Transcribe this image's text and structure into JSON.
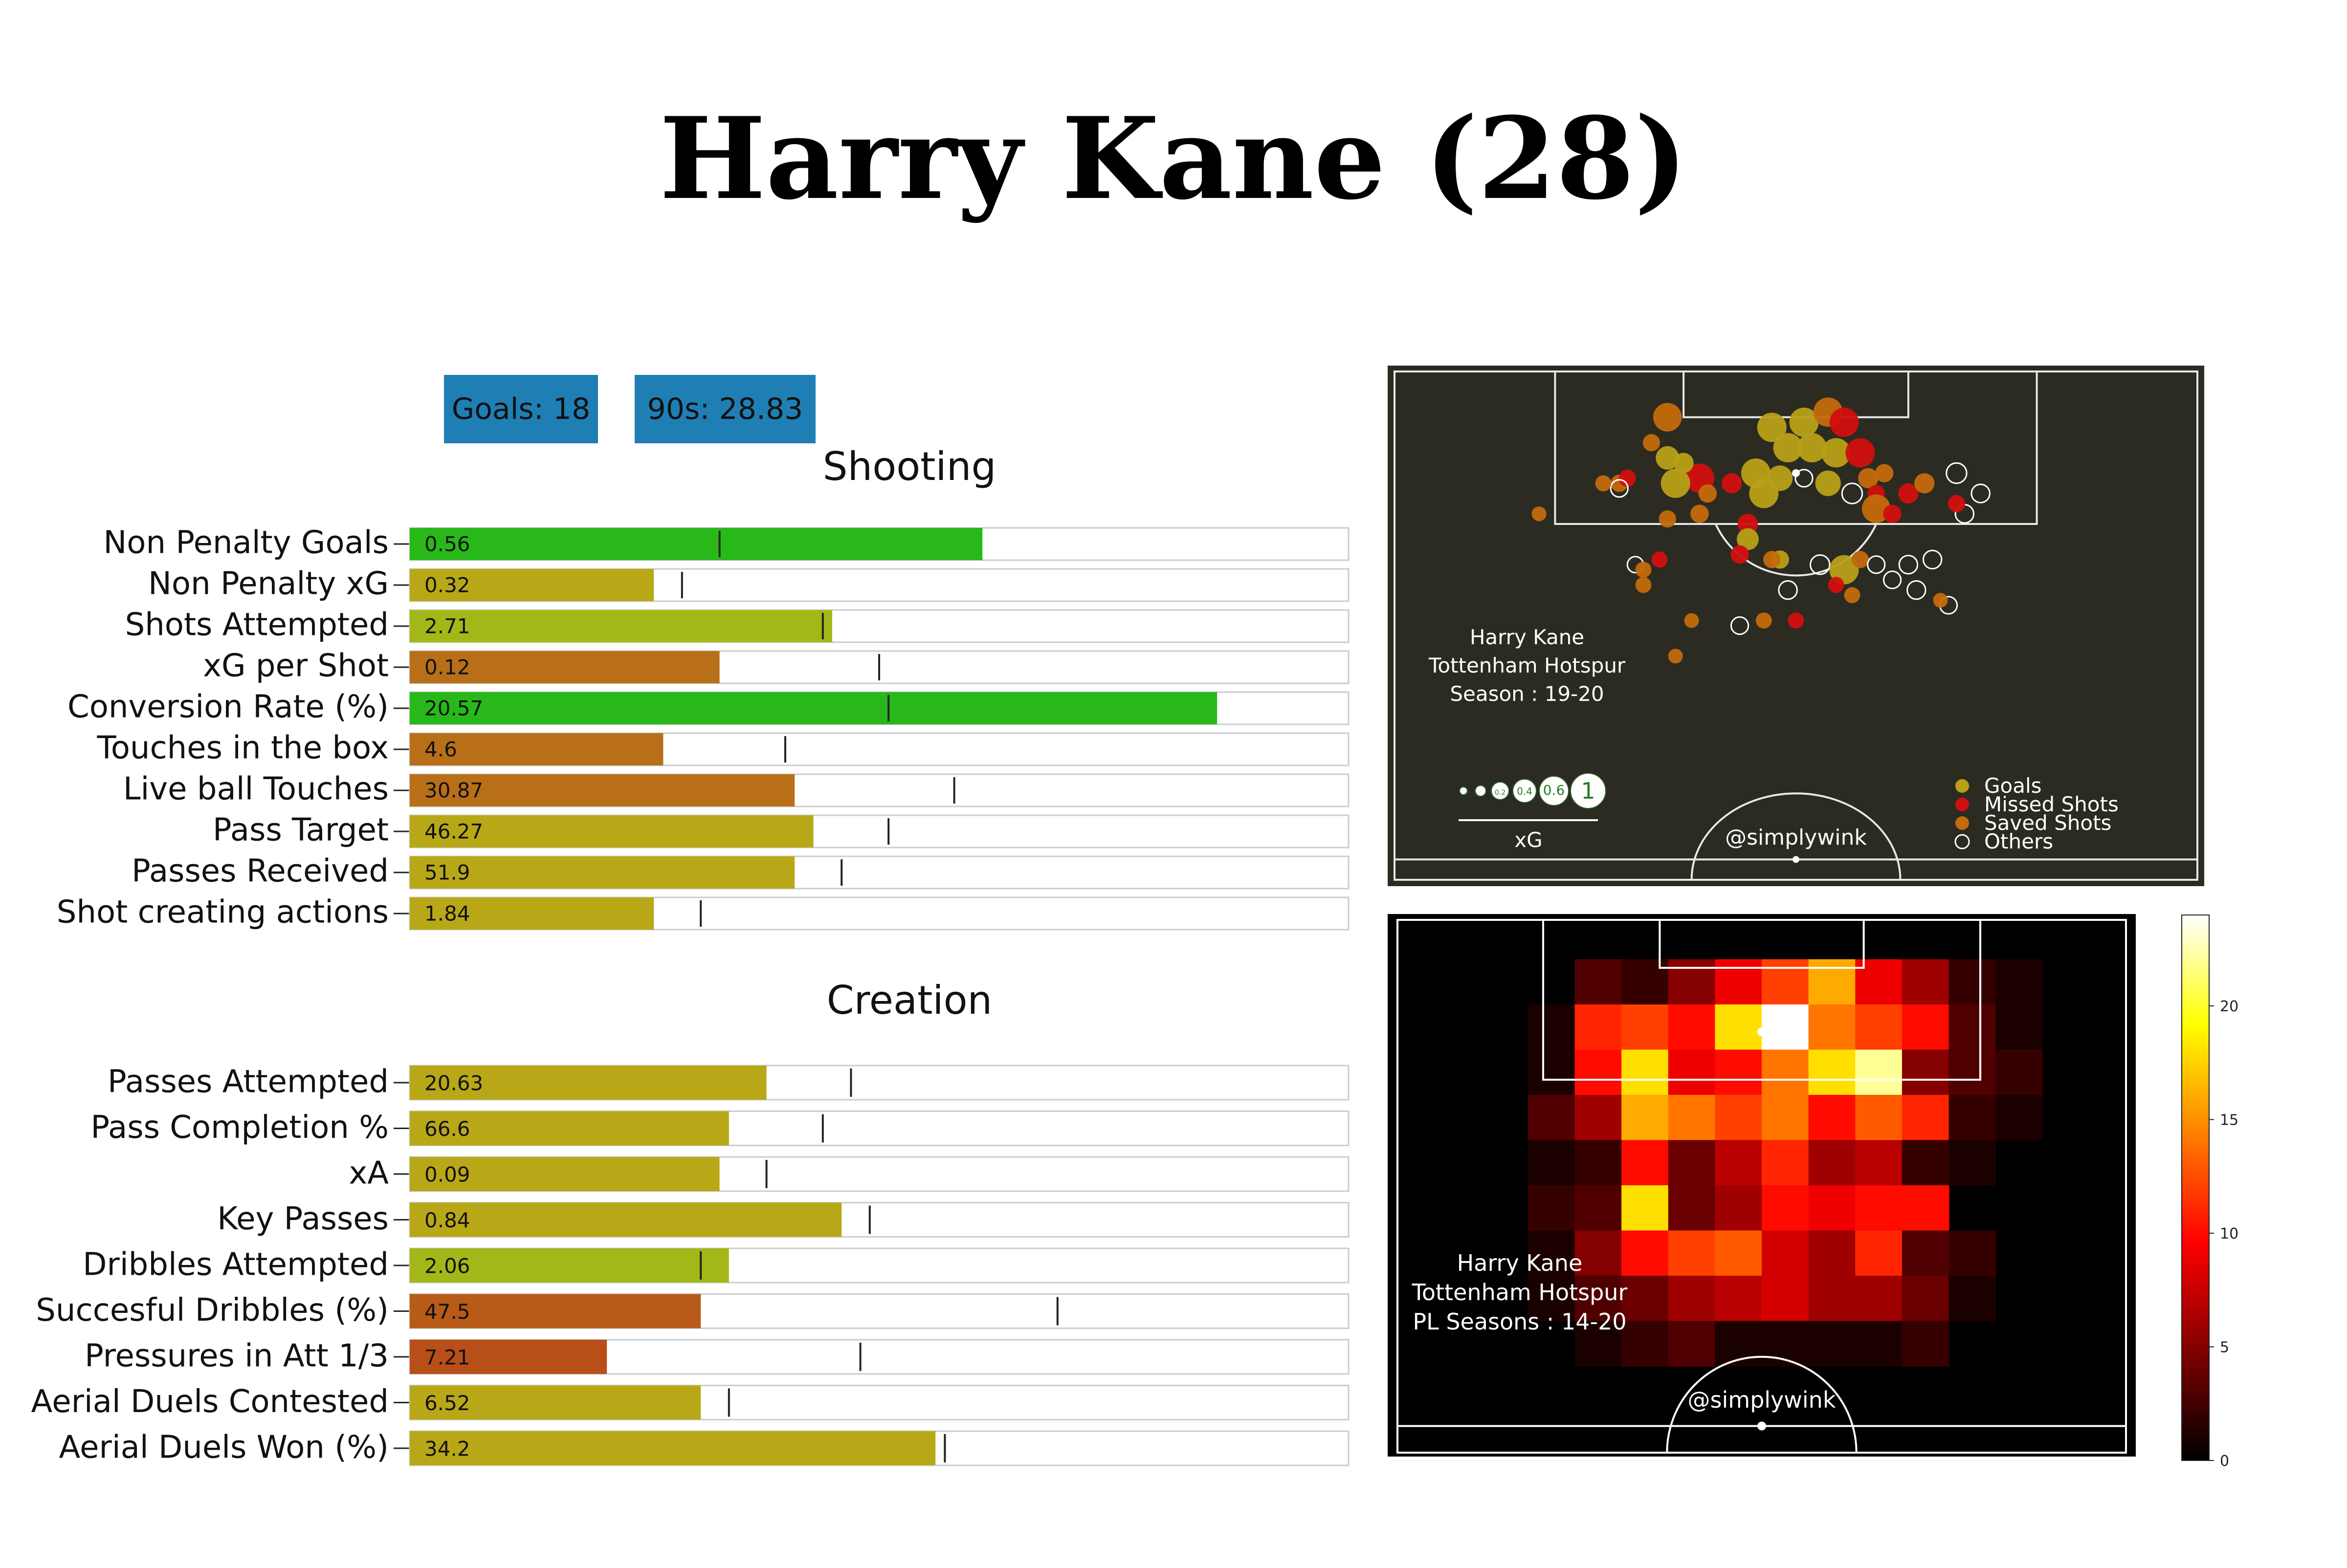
{
  "title": "Harry Kane (28)",
  "badges": {
    "goals": "Goals: 18",
    "nineties": "90s: 28.83"
  },
  "sections": {
    "shooting": "Shooting",
    "creation": "Creation"
  },
  "chart_data": [
    {
      "type": "bar",
      "title": "Shooting",
      "orientation": "horizontal",
      "scale_max": 1.0,
      "rows": [
        {
          "label": "Non Penalty Goals",
          "value_text": "0.56",
          "bar_fraction": 0.61,
          "marker_fraction": 0.33,
          "color": "#28b81a"
        },
        {
          "label": "Non Penalty xG",
          "value_text": "0.32",
          "bar_fraction": 0.26,
          "marker_fraction": 0.29,
          "color": "#b8a818"
        },
        {
          "label": "Shots Attempted",
          "value_text": "2.71",
          "bar_fraction": 0.45,
          "marker_fraction": 0.44,
          "color": "#a3b818"
        },
        {
          "label": "xG per Shot",
          "value_text": "0.12",
          "bar_fraction": 0.33,
          "marker_fraction": 0.5,
          "color": "#b86f18"
        },
        {
          "label": "Conversion Rate (%)",
          "value_text": "20.57",
          "bar_fraction": 0.86,
          "marker_fraction": 0.51,
          "color": "#28b81a"
        },
        {
          "label": "Touches in the box",
          "value_text": "4.6",
          "bar_fraction": 0.27,
          "marker_fraction": 0.4,
          "color": "#b86f18"
        },
        {
          "label": "Live ball Touches",
          "value_text": "30.87",
          "bar_fraction": 0.41,
          "marker_fraction": 0.58,
          "color": "#b86f18"
        },
        {
          "label": "Pass Target",
          "value_text": "46.27",
          "bar_fraction": 0.43,
          "marker_fraction": 0.51,
          "color": "#b8a818"
        },
        {
          "label": "Passes Received",
          "value_text": "51.9",
          "bar_fraction": 0.41,
          "marker_fraction": 0.46,
          "color": "#b8a818"
        },
        {
          "label": "Shot creating actions",
          "value_text": "1.84",
          "bar_fraction": 0.26,
          "marker_fraction": 0.31,
          "color": "#b8a818"
        }
      ]
    },
    {
      "type": "bar",
      "title": "Creation",
      "orientation": "horizontal",
      "scale_max": 1.0,
      "rows": [
        {
          "label": "Passes Attempted",
          "value_text": "20.63",
          "bar_fraction": 0.38,
          "marker_fraction": 0.47,
          "color": "#b8a818"
        },
        {
          "label": "Pass Completion % ",
          "value_text": "66.6",
          "bar_fraction": 0.34,
          "marker_fraction": 0.44,
          "color": "#b8a818"
        },
        {
          "label": "xA",
          "value_text": "0.09",
          "bar_fraction": 0.33,
          "marker_fraction": 0.38,
          "color": "#b8a818"
        },
        {
          "label": "Key Passes",
          "value_text": "0.84",
          "bar_fraction": 0.46,
          "marker_fraction": 0.49,
          "color": "#b8a818"
        },
        {
          "label": "Dribbles Attempted",
          "value_text": "2.06",
          "bar_fraction": 0.34,
          "marker_fraction": 0.31,
          "color": "#a3b818"
        },
        {
          "label": "Succesful Dribbles (%)",
          "value_text": "47.5",
          "bar_fraction": 0.31,
          "marker_fraction": 0.69,
          "color": "#b85a18"
        },
        {
          "label": "Pressures in Att 1/3",
          "value_text": "7.21",
          "bar_fraction": 0.21,
          "marker_fraction": 0.48,
          "color": "#b84e18"
        },
        {
          "label": "Aerial Duels Contested",
          "value_text": "6.52",
          "bar_fraction": 0.31,
          "marker_fraction": 0.34,
          "color": "#b8a818"
        },
        {
          "label": "Aerial Duels Won (%)",
          "value_text": "34.2",
          "bar_fraction": 0.56,
          "marker_fraction": 0.57,
          "color": "#b8a818"
        }
      ]
    },
    {
      "type": "scatter",
      "background": "#2b2b22",
      "annotation": [
        "Harry Kane",
        "Tottenham Hotspur",
        "Season : 19-20"
      ],
      "credit": "@simplywink",
      "xg_legend": {
        "label": "xG",
        "sizes": [
          "0.2",
          "0.4",
          "0.6",
          "1"
        ]
      },
      "legend": [
        {
          "name": "Goals",
          "color": "#b8a018"
        },
        {
          "name": "Missed Shots",
          "color": "#d10f0f"
        },
        {
          "name": "Saved Shots",
          "color": "#c46a0c"
        },
        {
          "name": "Others",
          "color": "#ffffff"
        }
      ],
      "x_range": [
        0,
        100
      ],
      "y_range": [
        0,
        100
      ],
      "points": [
        {
          "x": 51,
          "y": 10,
          "xg": 0.55,
          "type": "Goals"
        },
        {
          "x": 54,
          "y": 8,
          "xg": 0.45,
          "type": "Saved Shots"
        },
        {
          "x": 56,
          "y": 10,
          "xg": 0.3,
          "type": "Missed Shots"
        },
        {
          "x": 47,
          "y": 11,
          "xg": 0.3,
          "type": "Goals"
        },
        {
          "x": 49,
          "y": 15,
          "xg": 0.32,
          "type": "Goals"
        },
        {
          "x": 52,
          "y": 15,
          "xg": 0.35,
          "type": "Goals"
        },
        {
          "x": 55,
          "y": 16,
          "xg": 0.25,
          "type": "Goals"
        },
        {
          "x": 58,
          "y": 16,
          "xg": 0.28,
          "type": "Missed Shots"
        },
        {
          "x": 45,
          "y": 20,
          "xg": 0.25,
          "type": "Goals"
        },
        {
          "x": 48,
          "y": 21,
          "xg": 0.15,
          "type": "Goals"
        },
        {
          "x": 51,
          "y": 21,
          "xg": 0.05,
          "type": "Others"
        },
        {
          "x": 54,
          "y": 22,
          "xg": 0.15,
          "type": "Goals"
        },
        {
          "x": 46,
          "y": 24,
          "xg": 0.22,
          "type": "Goals"
        },
        {
          "x": 57,
          "y": 24,
          "xg": 0.08,
          "type": "Others"
        },
        {
          "x": 38,
          "y": 21,
          "xg": 0.26,
          "type": "Missed Shots"
        },
        {
          "x": 35,
          "y": 22,
          "xg": 0.22,
          "type": "Goals"
        },
        {
          "x": 34,
          "y": 17,
          "xg": 0.12,
          "type": "Goals"
        },
        {
          "x": 36,
          "y": 18,
          "xg": 0.08,
          "type": "Goals"
        },
        {
          "x": 34,
          "y": 9,
          "xg": 0.2,
          "type": "Saved Shots"
        },
        {
          "x": 32,
          "y": 14,
          "xg": 0.05,
          "type": "Saved Shots"
        },
        {
          "x": 28,
          "y": 22,
          "xg": 0.05,
          "type": "Saved Shots"
        },
        {
          "x": 29,
          "y": 21,
          "xg": 0.05,
          "type": "Missed Shots"
        },
        {
          "x": 28,
          "y": 23,
          "xg": 0.05,
          "type": "Others"
        },
        {
          "x": 26,
          "y": 22,
          "xg": 0.04,
          "type": "Saved Shots"
        },
        {
          "x": 39,
          "y": 24,
          "xg": 0.06,
          "type": "Saved Shots"
        },
        {
          "x": 42,
          "y": 22,
          "xg": 0.08,
          "type": "Missed Shots"
        },
        {
          "x": 38,
          "y": 28,
          "xg": 0.06,
          "type": "Saved Shots"
        },
        {
          "x": 34,
          "y": 29,
          "xg": 0.05,
          "type": "Saved Shots"
        },
        {
          "x": 44,
          "y": 30,
          "xg": 0.08,
          "type": "Missed Shots"
        },
        {
          "x": 44,
          "y": 33,
          "xg": 0.1,
          "type": "Goals"
        },
        {
          "x": 59,
          "y": 21,
          "xg": 0.08,
          "type": "Saved Shots"
        },
        {
          "x": 60,
          "y": 24,
          "xg": 0.05,
          "type": "Missed Shots"
        },
        {
          "x": 61,
          "y": 20,
          "xg": 0.06,
          "type": "Saved Shots"
        },
        {
          "x": 60,
          "y": 27,
          "xg": 0.2,
          "type": "Saved Shots"
        },
        {
          "x": 62,
          "y": 28,
          "xg": 0.06,
          "type": "Missed Shots"
        },
        {
          "x": 64,
          "y": 24,
          "xg": 0.08,
          "type": "Missed Shots"
        },
        {
          "x": 70,
          "y": 20,
          "xg": 0.08,
          "type": "Others"
        },
        {
          "x": 71,
          "y": 28,
          "xg": 0.06,
          "type": "Others"
        },
        {
          "x": 73,
          "y": 24,
          "xg": 0.06,
          "type": "Others"
        },
        {
          "x": 70,
          "y": 26,
          "xg": 0.05,
          "type": "Missed Shots"
        },
        {
          "x": 66,
          "y": 22,
          "xg": 0.08,
          "type": "Saved Shots"
        },
        {
          "x": 48,
          "y": 37,
          "xg": 0.06,
          "type": "Goals"
        },
        {
          "x": 43,
          "y": 36,
          "xg": 0.06,
          "type": "Missed Shots"
        },
        {
          "x": 47,
          "y": 37,
          "xg": 0.05,
          "type": "Saved Shots"
        },
        {
          "x": 30,
          "y": 38,
          "xg": 0.04,
          "type": "Others"
        },
        {
          "x": 33,
          "y": 37,
          "xg": 0.04,
          "type": "Missed Shots"
        },
        {
          "x": 31,
          "y": 39,
          "xg": 0.04,
          "type": "Saved Shots"
        },
        {
          "x": 53,
          "y": 38,
          "xg": 0.07,
          "type": "Others"
        },
        {
          "x": 56,
          "y": 39,
          "xg": 0.28,
          "type": "Goals"
        },
        {
          "x": 58,
          "y": 37,
          "xg": 0.05,
          "type": "Saved Shots"
        },
        {
          "x": 60,
          "y": 38,
          "xg": 0.05,
          "type": "Others"
        },
        {
          "x": 64,
          "y": 38,
          "xg": 0.06,
          "type": "Others"
        },
        {
          "x": 67,
          "y": 37,
          "xg": 0.06,
          "type": "Others"
        },
        {
          "x": 62,
          "y": 41,
          "xg": 0.05,
          "type": "Others"
        },
        {
          "x": 49,
          "y": 43,
          "xg": 0.06,
          "type": "Others"
        },
        {
          "x": 55,
          "y": 42,
          "xg": 0.04,
          "type": "Missed Shots"
        },
        {
          "x": 57,
          "y": 44,
          "xg": 0.04,
          "type": "Saved Shots"
        },
        {
          "x": 65,
          "y": 43,
          "xg": 0.06,
          "type": "Others"
        },
        {
          "x": 69,
          "y": 46,
          "xg": 0.05,
          "type": "Others"
        },
        {
          "x": 31,
          "y": 42,
          "xg": 0.04,
          "type": "Saved Shots"
        },
        {
          "x": 43,
          "y": 50,
          "xg": 0.05,
          "type": "Others"
        },
        {
          "x": 46,
          "y": 49,
          "xg": 0.04,
          "type": "Saved Shots"
        },
        {
          "x": 50,
          "y": 49,
          "xg": 0.04,
          "type": "Missed Shots"
        },
        {
          "x": 37,
          "y": 49,
          "xg": 0.03,
          "type": "Saved Shots"
        },
        {
          "x": 35,
          "y": 56,
          "xg": 0.03,
          "type": "Saved Shots"
        },
        {
          "x": 18,
          "y": 28,
          "xg": 0.03,
          "type": "Saved Shots"
        },
        {
          "x": 68,
          "y": 45,
          "xg": 0.03,
          "type": "Saved Shots"
        }
      ]
    },
    {
      "type": "heatmap",
      "background": "#000000",
      "annotation": [
        "Harry Kane",
        "Tottenham Hotspur",
        "PL Seasons : 14-20"
      ],
      "credit": "@simplywink",
      "colorbar": {
        "min": 0,
        "max": 24,
        "ticks": [
          0,
          5,
          10,
          15,
          20
        ]
      },
      "grid_cols": 16,
      "grid_rows": 12,
      "values": [
        [
          0,
          0,
          0,
          0,
          0,
          0,
          0,
          0,
          0,
          0,
          0,
          0,
          0,
          0,
          0,
          0
        ],
        [
          0,
          0,
          0,
          0,
          3,
          2,
          5,
          9,
          12,
          16,
          9,
          6,
          2,
          1,
          0,
          0
        ],
        [
          0,
          0,
          0,
          1,
          11,
          12,
          10,
          18,
          24,
          14,
          12,
          10,
          3,
          1,
          0,
          0
        ],
        [
          0,
          0,
          0,
          1,
          10,
          18,
          9,
          10,
          14,
          18,
          22,
          5,
          3,
          2,
          0,
          0
        ],
        [
          0,
          0,
          0,
          3,
          6,
          16,
          14,
          12,
          14,
          10,
          13,
          11,
          2,
          1,
          0,
          0
        ],
        [
          0,
          0,
          0,
          1,
          2,
          10,
          4,
          7,
          11,
          6,
          7,
          2,
          1,
          0,
          0,
          0
        ],
        [
          0,
          0,
          0,
          2,
          3,
          18,
          4,
          6,
          10,
          9,
          10,
          10,
          0,
          0,
          0,
          0
        ],
        [
          0,
          0,
          0,
          1,
          5,
          10,
          12,
          13,
          8,
          6,
          11,
          3,
          2,
          0,
          0,
          0
        ],
        [
          0,
          0,
          0,
          1,
          3,
          4,
          6,
          7,
          8,
          6,
          6,
          4,
          1,
          0,
          0,
          0
        ],
        [
          0,
          0,
          0,
          0,
          1,
          2,
          3,
          1,
          1,
          1,
          1,
          2,
          0,
          0,
          0,
          0
        ],
        [
          0,
          0,
          0,
          0,
          0,
          0,
          0,
          0,
          0,
          0,
          0,
          0,
          0,
          0,
          0,
          0
        ],
        [
          0,
          0,
          0,
          0,
          0,
          0,
          0,
          0,
          0,
          0,
          0,
          0,
          0,
          0,
          0,
          0
        ]
      ]
    }
  ]
}
